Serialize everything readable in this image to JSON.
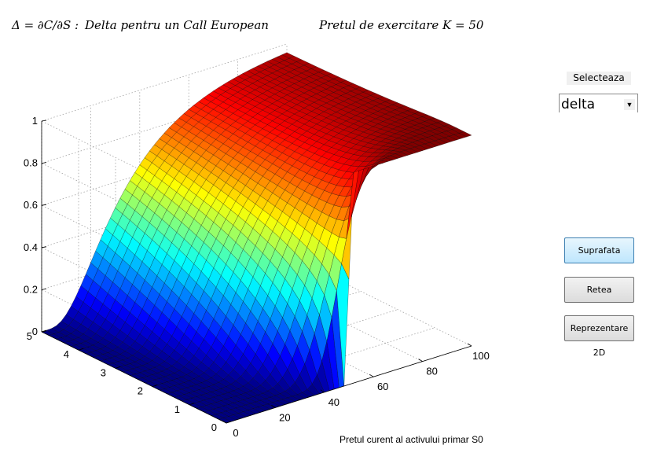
{
  "title": {
    "math": "Δ = ∂C/∂S :",
    "text1": "Delta pentru un Call European",
    "text2": "Pretul de exercitare K = 50"
  },
  "controls": {
    "select_label": "Selecteaza",
    "select_value": "delta",
    "buttons": [
      {
        "label": "Suprafata",
        "active": true
      },
      {
        "label": "Retea",
        "active": false
      },
      {
        "label": "Reprezentare 2D",
        "active": false
      }
    ]
  },
  "chart_data": {
    "type": "surface",
    "title": "Δ = ∂C/∂S : Delta pentru un Call European  Pretul de exercitare K = 50",
    "xlabel": "Pretul curent al activului primar S0",
    "ylabel": "",
    "zlabel": "",
    "xlim": [
      0,
      100
    ],
    "ylim": [
      0,
      5
    ],
    "zlim": [
      0,
      1
    ],
    "x_ticks": [
      0,
      20,
      40,
      60,
      80,
      100
    ],
    "y_ticks": [
      0,
      1,
      2,
      3,
      4,
      5
    ],
    "z_ticks": [
      0,
      0.2,
      0.4,
      0.6,
      0.8,
      1
    ],
    "strike": 50,
    "colormap": "jet",
    "grid": true
  }
}
